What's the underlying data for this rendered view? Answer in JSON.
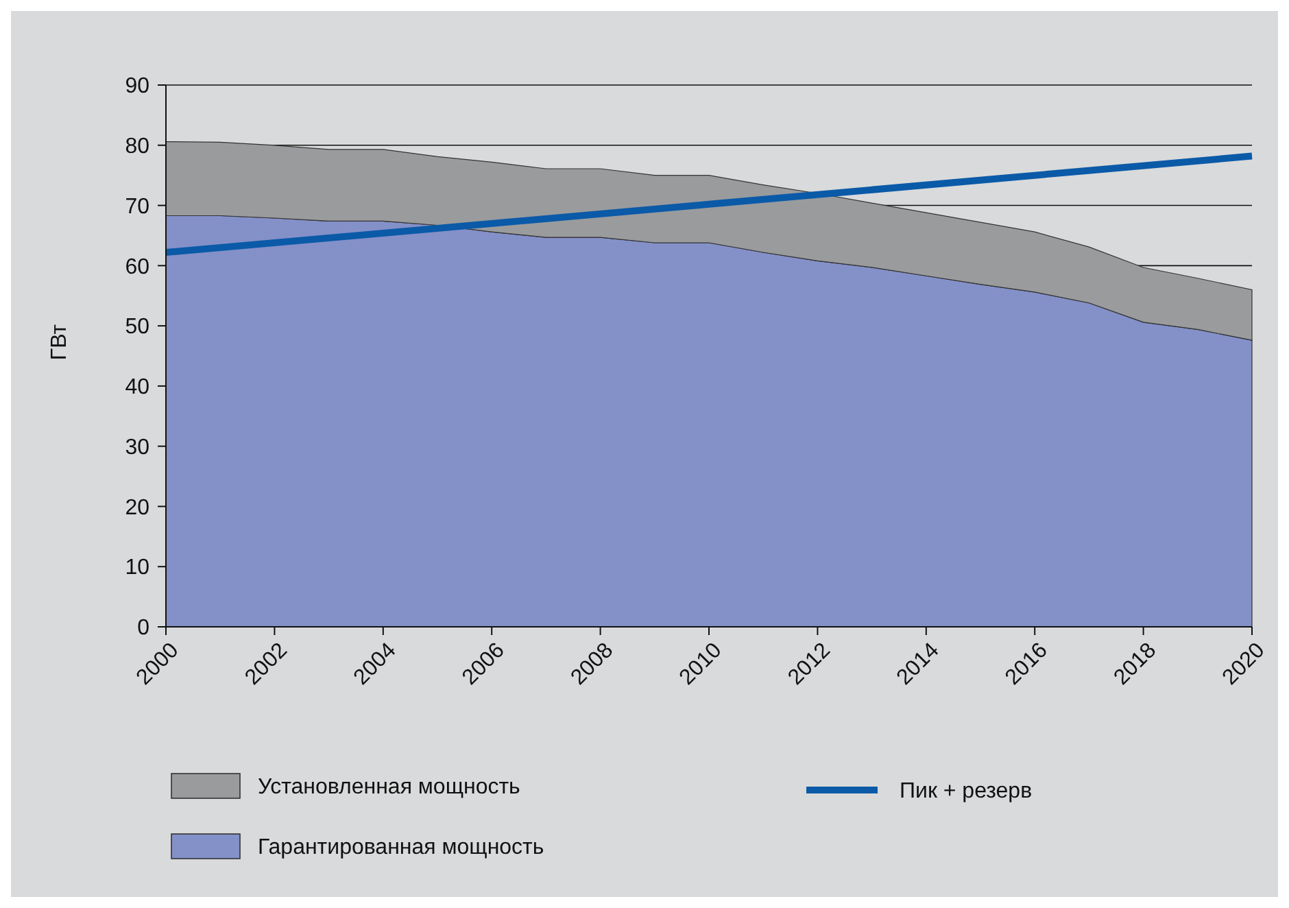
{
  "chart_data": {
    "type": "area",
    "ylabel": "ГВт",
    "x": [
      2000,
      2001,
      2002,
      2003,
      2004,
      2005,
      2006,
      2007,
      2008,
      2009,
      2010,
      2011,
      2012,
      2013,
      2014,
      2015,
      2016,
      2017,
      2018,
      2019,
      2020
    ],
    "series": [
      {
        "name": "Установленная мощность",
        "color": "#9a9b9d",
        "values": [
          80.6,
          80.5,
          80,
          79.3,
          79.3,
          78.1,
          77.2,
          76.1,
          76.1,
          75,
          75,
          73.4,
          72,
          70.4,
          68.8,
          67.2,
          65.6,
          63.1,
          59.7,
          57.9,
          56
        ]
      },
      {
        "name": "Гарантированная мощность",
        "color": "#8490c8",
        "values": [
          68.3,
          68.3,
          67.9,
          67.4,
          67.4,
          66.7,
          65.6,
          64.7,
          64.7,
          63.8,
          63.8,
          62.2,
          60.8,
          59.7,
          58.3,
          56.9,
          55.6,
          53.8,
          50.6,
          49.4,
          47.6
        ]
      },
      {
        "name": "Пик + резерв",
        "type": "line",
        "color": "#0a5aa8",
        "x": [
          2000,
          2010,
          2020
        ],
        "values": [
          62.2,
          70.2,
          78.2
        ]
      }
    ],
    "xlim": [
      2000,
      2020
    ],
    "xticks": [
      2000,
      2002,
      2004,
      2006,
      2008,
      2010,
      2012,
      2014,
      2016,
      2018,
      2020
    ],
    "ylim": [
      0,
      90
    ],
    "yticks": [
      0,
      10,
      20,
      30,
      40,
      50,
      60,
      70,
      80,
      90
    ],
    "grid": "y",
    "legend": "bottom"
  }
}
